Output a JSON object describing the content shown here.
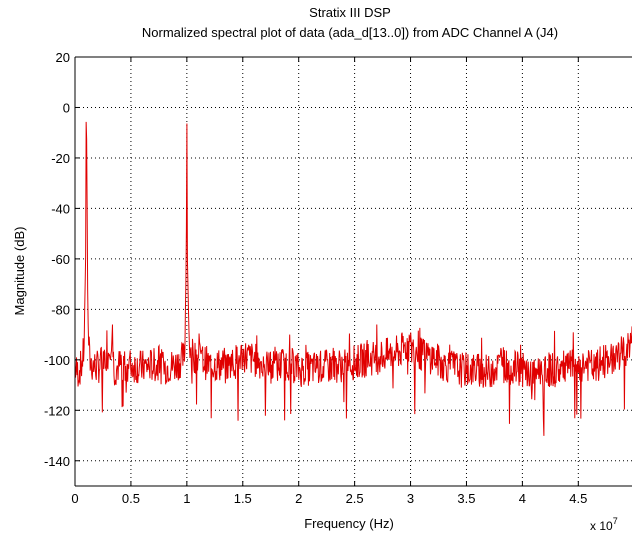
{
  "chart_data": {
    "type": "line",
    "title": "Stratix III DSP",
    "subtitle": "Normalized spectral plot of data (ada_d[13..0]) from ADC Channel A (J4)",
    "xlabel": "Frequency (Hz)",
    "ylabel": "Magnitude (dB)",
    "x_multiplier_label": "x 10",
    "x_multiplier_exponent": "7",
    "xlim": [
      0,
      49800000
    ],
    "ylim": [
      -150,
      20
    ],
    "x_ticks": [
      0,
      5000000,
      10000000,
      15000000,
      20000000,
      25000000,
      30000000,
      35000000,
      40000000,
      45000000
    ],
    "x_tick_labels": [
      "0",
      "0.5",
      "1",
      "1.5",
      "2",
      "2.5",
      "3",
      "3.5",
      "4",
      "4.5"
    ],
    "y_ticks": [
      20,
      0,
      -20,
      -40,
      -60,
      -80,
      -100,
      -120,
      -140
    ],
    "y_tick_labels": [
      "20",
      "0",
      "-20",
      "-40",
      "-60",
      "-80",
      "-100",
      "-120",
      "-140"
    ],
    "grid": true,
    "grid_style": "dotted",
    "colors": {
      "series": "#e00000",
      "axes": "#000000",
      "grid": "#000000"
    },
    "noise_floor_db": -103,
    "series": [
      {
        "x": [
          0,
          200000,
          400000,
          600000,
          800000,
          950000,
          1000000,
          1050000,
          1150000,
          1300000,
          1500000,
          2000000,
          2500000,
          3000000,
          3300000,
          3500000,
          4000000,
          5000000,
          6000000,
          7000000,
          8000000,
          9000000,
          9800000,
          9950000,
          10000000,
          10050000,
          10200000,
          10500000,
          11000000,
          12000000,
          13000000,
          14000000,
          15000000,
          16000000,
          17000000,
          18000000,
          19000000,
          20000000,
          22000000,
          24000000,
          26000000,
          28000000,
          29000000,
          29800000,
          30200000,
          31000000,
          32000000,
          33000000,
          34000000,
          34500000,
          35000000,
          36000000,
          37000000,
          38000000,
          39000000,
          40000000,
          40800000,
          41000000,
          42000000,
          43000000,
          44000000,
          45000000,
          46000000,
          46500000,
          47000000,
          48000000,
          49000000,
          49800000
        ],
        "y": [
          -103,
          -105,
          -104,
          -102,
          -96,
          -60,
          -1,
          -15,
          -85,
          -100,
          -102,
          -103,
          -101,
          -97,
          -90,
          -104,
          -102,
          -102,
          -103,
          -102,
          -103,
          -102,
          -99,
          -60,
          0,
          -60,
          -92,
          -98,
          -99,
          -102,
          -102,
          -102,
          -98,
          -100,
          -102,
          -103,
          -101,
          -104,
          -103,
          -102,
          -100,
          -98,
          -97,
          -94,
          -96,
          -98,
          -99,
          -102,
          -103,
          -104,
          -104,
          -104,
          -105,
          -102,
          -103,
          -104,
          -106,
          -104,
          -104,
          -104,
          -103,
          -102,
          -102,
          -104,
          -101,
          -99,
          -97,
          -93
        ]
      }
    ]
  }
}
